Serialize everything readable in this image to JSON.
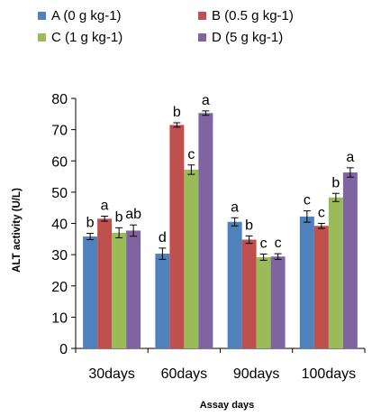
{
  "chart_data": {
    "type": "bar",
    "xlabel": "Assay days",
    "ylabel": "ALT activity (U/L)",
    "ylim": [
      0,
      80
    ],
    "yticks": [
      0,
      10,
      20,
      30,
      40,
      50,
      60,
      70,
      80
    ],
    "categories": [
      "30days",
      "60days",
      "90days",
      "100days"
    ],
    "grid": false,
    "legend_position": "top",
    "series": [
      {
        "name": "A (0 g kg-1)",
        "color": "#4f81bd",
        "values": [
          35.8,
          30.3,
          40.5,
          42.2
        ],
        "errors": [
          1.0,
          1.8,
          1.3,
          1.8
        ],
        "labels": [
          "b",
          "d",
          "a",
          "c"
        ]
      },
      {
        "name": "B (0.5 g kg-1)",
        "color": "#c0504d",
        "values": [
          41.5,
          71.5,
          34.8,
          39.2
        ],
        "errors": [
          0.8,
          0.7,
          1.2,
          0.8
        ],
        "labels": [
          "a",
          "b",
          "b",
          "c"
        ]
      },
      {
        "name": "C (1 g kg-1)",
        "color": "#9bbb59",
        "values": [
          37.0,
          57.2,
          29.2,
          48.3
        ],
        "errors": [
          1.6,
          1.5,
          1.0,
          1.3
        ],
        "labels": [
          "b",
          "c",
          "c",
          "b"
        ]
      },
      {
        "name": "D (5 g kg-1)",
        "color": "#8064a2",
        "values": [
          37.7,
          75.3,
          29.4,
          56.3
        ],
        "errors": [
          1.8,
          0.7,
          0.9,
          1.5
        ],
        "labels": [
          "ab",
          "a",
          "c",
          "a"
        ]
      }
    ]
  }
}
